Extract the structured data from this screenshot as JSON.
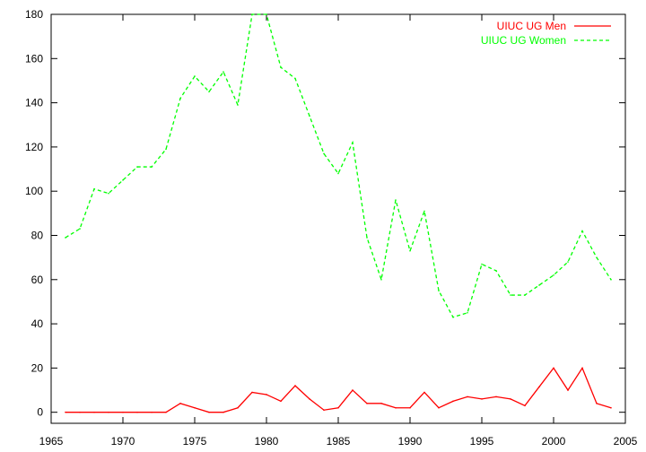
{
  "chart_data": {
    "type": "line",
    "title": "",
    "xlabel": "",
    "ylabel": "",
    "xlim": [
      1965,
      2005
    ],
    "ylim": [
      -5,
      180
    ],
    "xticks": [
      1965,
      1970,
      1975,
      1980,
      1985,
      1990,
      1995,
      2000,
      2005
    ],
    "yticks": [
      0,
      20,
      40,
      60,
      80,
      100,
      120,
      140,
      160,
      180
    ],
    "grid": false,
    "legend_position": "top-right",
    "x": [
      1966,
      1967,
      1968,
      1969,
      1970,
      1971,
      1972,
      1973,
      1974,
      1975,
      1976,
      1977,
      1978,
      1979,
      1980,
      1981,
      1982,
      1983,
      1984,
      1985,
      1986,
      1987,
      1988,
      1989,
      1990,
      1991,
      1992,
      1993,
      1994,
      1995,
      1996,
      1997,
      1998,
      1999,
      2000,
      2001,
      2002,
      2003,
      2004
    ],
    "series": [
      {
        "name": "UIUC UG Men",
        "color": "#ff0000",
        "dash": "solid",
        "values": [
          0,
          0,
          0,
          0,
          0,
          0,
          0,
          0,
          4,
          2,
          0,
          0,
          2,
          9,
          8,
          5,
          12,
          6,
          1,
          2,
          10,
          4,
          4,
          2,
          2,
          9,
          2,
          5,
          7,
          6,
          7,
          6,
          3,
          11.5,
          20,
          10,
          20,
          4,
          2
        ]
      },
      {
        "name": "UIUC UG Women",
        "color": "#00ff00",
        "dash": "dashed",
        "values": [
          79,
          83,
          101,
          99,
          105,
          111,
          111,
          119,
          142,
          152,
          145,
          154,
          139,
          180,
          180,
          156,
          151,
          134,
          117,
          108,
          122,
          79,
          60,
          96,
          73,
          91,
          55,
          43,
          45,
          67,
          64,
          53,
          53,
          57.5,
          62,
          68,
          82,
          70,
          60
        ]
      }
    ]
  }
}
